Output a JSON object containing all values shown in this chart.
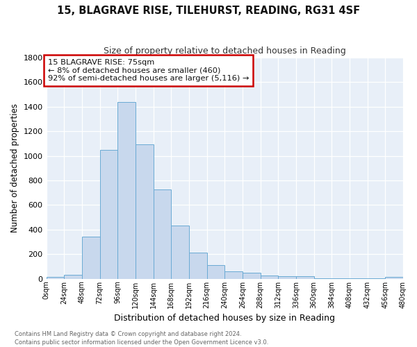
{
  "title1": "15, BLAGRAVE RISE, TILEHURST, READING, RG31 4SF",
  "title2": "Size of property relative to detached houses in Reading",
  "xlabel": "Distribution of detached houses by size in Reading",
  "ylabel": "Number of detached properties",
  "bar_color": "#c8d8ed",
  "bar_edge_color": "#6aaad4",
  "plot_bg_color": "#e8eff8",
  "fig_bg_color": "#ffffff",
  "annotation_text_line1": "15 BLAGRAVE RISE: 75sqm",
  "annotation_text_line2": "← 8% of detached houses are smaller (460)",
  "annotation_text_line3": "92% of semi-detached houses are larger (5,116) →",
  "annotation_box_color": "#ffffff",
  "annotation_box_edge_color": "#cc0000",
  "footer_text": "Contains HM Land Registry data © Crown copyright and database right 2024.\nContains public sector information licensed under the Open Government Licence v3.0.",
  "bins": [
    0,
    24,
    48,
    72,
    96,
    120,
    144,
    168,
    192,
    216,
    240,
    264,
    288,
    312,
    336,
    360,
    384,
    408,
    432,
    456,
    480
  ],
  "bar_heights": [
    15,
    30,
    345,
    1050,
    1440,
    1095,
    727,
    432,
    215,
    110,
    60,
    50,
    28,
    20,
    18,
    5,
    5,
    5,
    3,
    15
  ],
  "ylim": [
    0,
    1800
  ],
  "yticks": [
    0,
    200,
    400,
    600,
    800,
    1000,
    1200,
    1400,
    1600,
    1800
  ],
  "xtick_labels": [
    "0sqm",
    "24sqm",
    "48sqm",
    "72sqm",
    "96sqm",
    "120sqm",
    "144sqm",
    "168sqm",
    "192sqm",
    "216sqm",
    "240sqm",
    "264sqm",
    "288sqm",
    "312sqm",
    "336sqm",
    "360sqm",
    "384sqm",
    "408sqm",
    "432sqm",
    "456sqm",
    "480sqm"
  ]
}
